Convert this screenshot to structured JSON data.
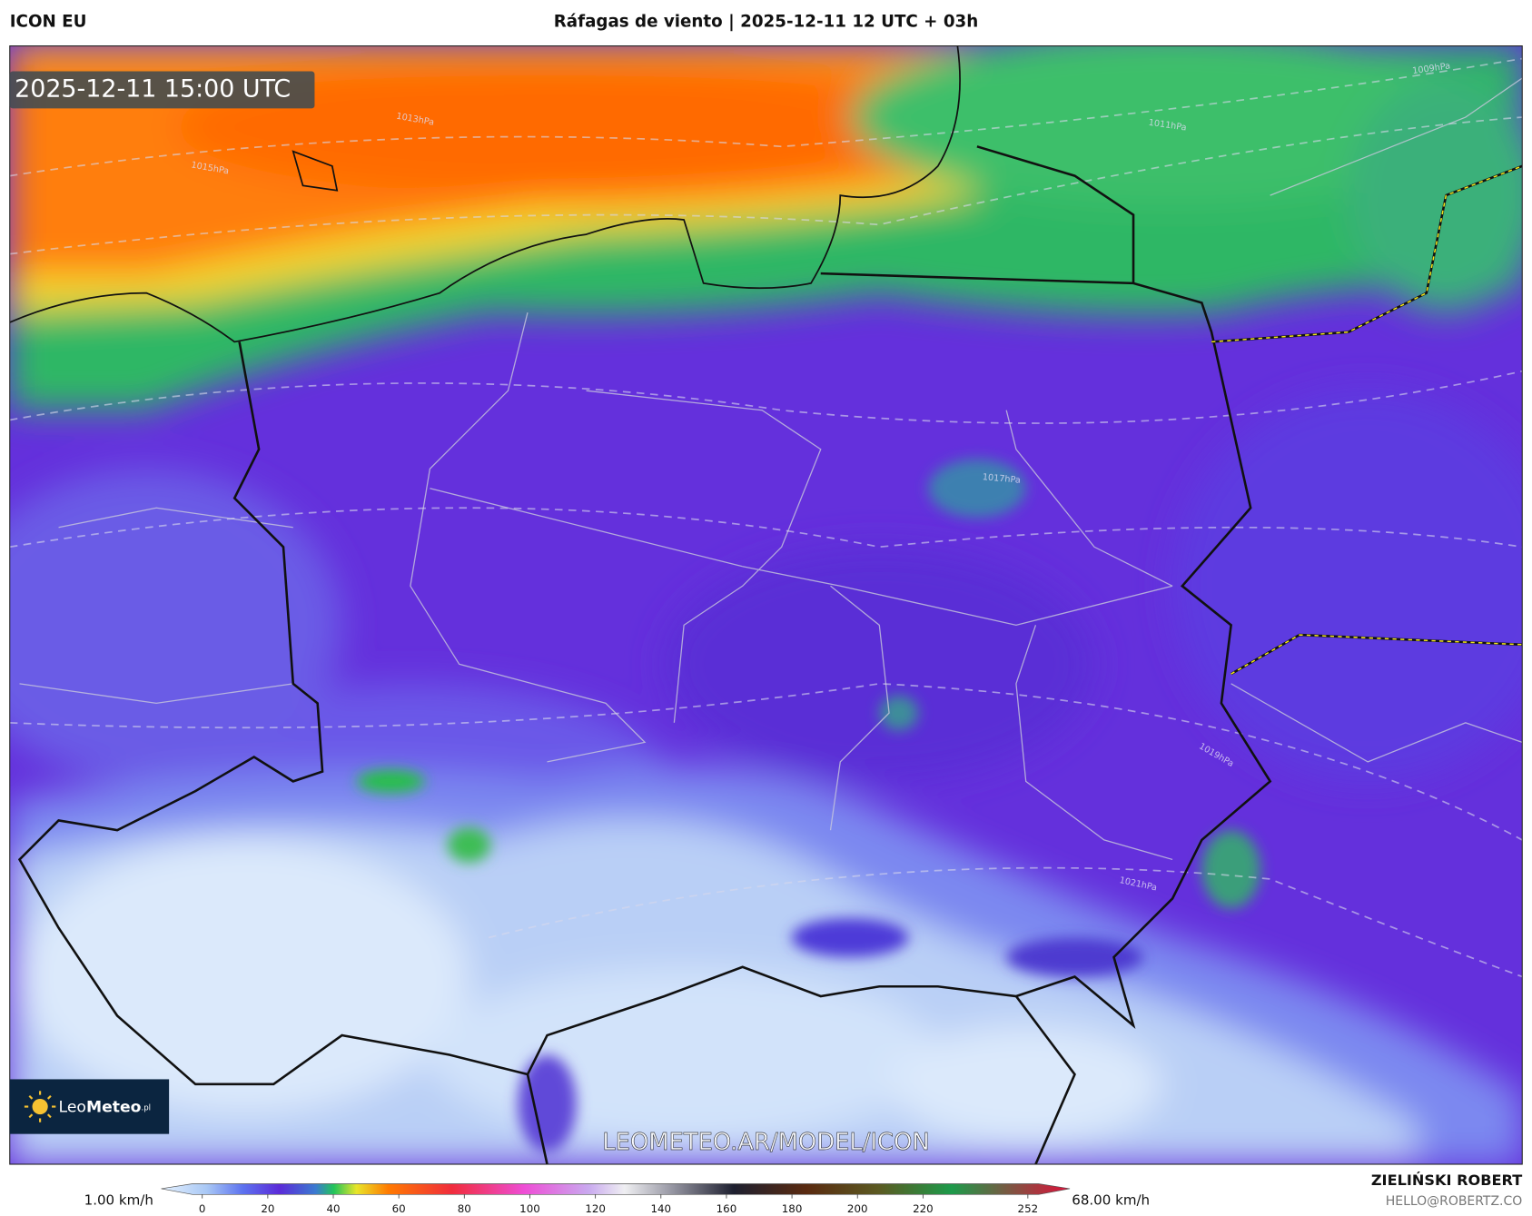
{
  "header": {
    "model": "ICON EU",
    "title": "Ráfagas de viento | 2025-12-11 12 UTC + 03h"
  },
  "map": {
    "timestamp": "2025-12-11 15:00 UTC",
    "watermark": "LEOMETEO.AR/MODEL/ICON",
    "logo": {
      "brand_light": "Leo",
      "brand_bold": "Meteo",
      "suffix": ".pl"
    },
    "isobars": [
      "1009hPa",
      "1011hPa",
      "1013hPa",
      "1015hPa",
      "1017hPa",
      "1019hPa",
      "1021hPa"
    ]
  },
  "colorbar": {
    "min_label": "1.00 km/h",
    "max_label": "68.00 km/h",
    "ticks": [
      0,
      20,
      40,
      60,
      80,
      100,
      120,
      140,
      160,
      180,
      200,
      220,
      252
    ]
  },
  "footer": {
    "author": "ZIELIŃSKI ROBERT",
    "email": "HELLO@ROBERTZ.CO"
  }
}
